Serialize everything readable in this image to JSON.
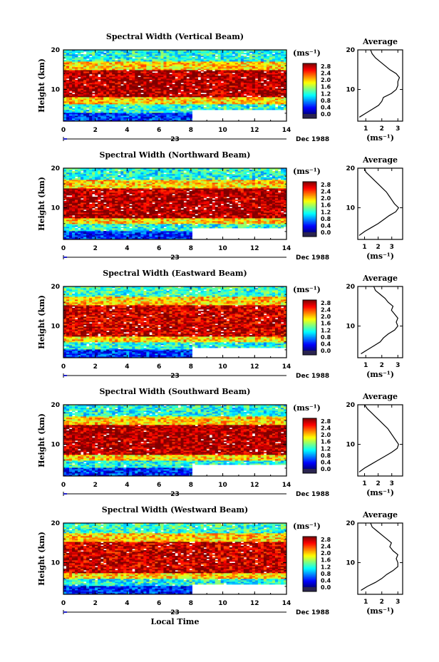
{
  "chart_data": [
    {
      "type": "heatmap",
      "title": "Spectral Width (Vertical Beam)",
      "ylabel": "Height (km)",
      "xticks": [
        "0",
        "2",
        "4",
        "6",
        "8",
        "10",
        "12",
        "14"
      ],
      "yticks": [
        "10",
        "20"
      ],
      "date_day": "23",
      "date_label": "Dec 1988",
      "xlim": [
        0,
        14
      ],
      "ylim": [
        2,
        20
      ],
      "data_gap": {
        "x": [
          8,
          14
        ],
        "y": [
          2,
          5
        ]
      },
      "colorbar": {
        "unit": "(ms⁻¹)",
        "labels": [
          "2.8",
          "2.4",
          "2.0",
          "1.6",
          "1.2",
          "0.8",
          "0.4",
          "0.0"
        ],
        "range": [
          0,
          3
        ]
      },
      "bands": [
        {
          "y": [
            2,
            4
          ],
          "value": 0.5
        },
        {
          "y": [
            4,
            6.5
          ],
          "value": 1.2
        },
        {
          "y": [
            6.5,
            8
          ],
          "value": 2.0
        },
        {
          "y": [
            8,
            15
          ],
          "value": 2.9
        },
        {
          "y": [
            15,
            17
          ],
          "value": 2.0
        },
        {
          "y": [
            17,
            20
          ],
          "value": 1.2
        }
      ],
      "profile": {
        "title": "Average",
        "xlabel": "(ms⁻¹)",
        "xticks": [
          "1",
          "2",
          "3"
        ],
        "yticks": [
          "10",
          "20"
        ],
        "xlim": [
          0.5,
          3.3
        ],
        "height": [
          3,
          4,
          5,
          6,
          7,
          8,
          9,
          10,
          11,
          12,
          13,
          14,
          15,
          16,
          17,
          18,
          19,
          20
        ],
        "width": [
          0.6,
          1.0,
          1.4,
          1.8,
          2.0,
          2.1,
          2.6,
          2.9,
          3.0,
          3.0,
          3.1,
          2.9,
          2.5,
          2.2,
          1.9,
          1.6,
          1.4,
          1.3
        ]
      }
    },
    {
      "type": "heatmap",
      "title": "Spectral Width (Northward Beam)",
      "ylabel": "Height (km)",
      "xticks": [
        "0",
        "2",
        "4",
        "6",
        "8",
        "10",
        "12",
        "14"
      ],
      "yticks": [
        "10",
        "20"
      ],
      "date_day": "23",
      "date_label": "Dec 1988",
      "xlim": [
        0,
        14
      ],
      "ylim": [
        2,
        20
      ],
      "data_gap": {
        "x": [
          8,
          14
        ],
        "y": [
          2,
          5
        ]
      },
      "colorbar": {
        "unit": "(ms⁻¹)",
        "labels": [
          "2.8",
          "2.4",
          "2.0",
          "1.6",
          "1.2",
          "0.8",
          "0.4",
          "0.0"
        ],
        "range": [
          0,
          3
        ]
      },
      "bands": [
        {
          "y": [
            2,
            4
          ],
          "value": 0.5
        },
        {
          "y": [
            4,
            6
          ],
          "value": 1.2
        },
        {
          "y": [
            6,
            7.5
          ],
          "value": 2.0
        },
        {
          "y": [
            7.5,
            15
          ],
          "value": 2.9
        },
        {
          "y": [
            15,
            17
          ],
          "value": 2.0
        },
        {
          "y": [
            17,
            20
          ],
          "value": 1.2
        }
      ],
      "profile": {
        "title": "Average",
        "xlabel": "(ms⁻¹)",
        "xticks": [
          "1",
          "2",
          "3"
        ],
        "yticks": [
          "10",
          "20"
        ],
        "xlim": [
          0.5,
          3.8
        ],
        "height": [
          3,
          4,
          5,
          6,
          7,
          8,
          9,
          10,
          11,
          12,
          13,
          14,
          15,
          16,
          17,
          18,
          19,
          20
        ],
        "width": [
          0.6,
          1.0,
          1.5,
          2.0,
          2.4,
          2.8,
          3.3,
          3.5,
          3.2,
          3.0,
          2.8,
          2.6,
          2.3,
          2.0,
          1.7,
          1.4,
          1.1,
          1.0
        ]
      }
    },
    {
      "type": "heatmap",
      "title": "Spectral Width (Eastward Beam)",
      "ylabel": "Height (km)",
      "xticks": [
        "0",
        "2",
        "4",
        "6",
        "8",
        "10",
        "12",
        "14"
      ],
      "yticks": [
        "10",
        "20"
      ],
      "date_day": "23",
      "date_label": "Dec 1988",
      "xlim": [
        0,
        14
      ],
      "ylim": [
        2,
        20
      ],
      "data_gap": {
        "x": [
          8,
          14
        ],
        "y": [
          2,
          4.5
        ]
      },
      "colorbar": {
        "unit": "(ms⁻¹)",
        "labels": [
          "2.8",
          "2.4",
          "2.0",
          "1.6",
          "1.2",
          "0.8",
          "0.4",
          "0.0"
        ],
        "range": [
          0,
          3
        ]
      },
      "bands": [
        {
          "y": [
            2,
            4
          ],
          "value": 0.5
        },
        {
          "y": [
            4,
            6
          ],
          "value": 1.2
        },
        {
          "y": [
            6,
            7.5
          ],
          "value": 2.0
        },
        {
          "y": [
            7.5,
            15.5
          ],
          "value": 2.8
        },
        {
          "y": [
            15.5,
            17.5
          ],
          "value": 2.0
        },
        {
          "y": [
            17.5,
            20
          ],
          "value": 1.3
        }
      ],
      "profile": {
        "title": "Average",
        "xlabel": "(ms⁻¹)",
        "xticks": [
          "1",
          "2",
          "3"
        ],
        "yticks": [
          "10",
          "20"
        ],
        "xlim": [
          0.5,
          3.3
        ],
        "height": [
          3,
          4,
          5,
          6,
          7,
          8,
          9,
          10,
          11,
          12,
          13,
          14,
          15,
          16,
          17,
          18,
          19,
          20
        ],
        "width": [
          0.7,
          1.1,
          1.5,
          1.9,
          2.1,
          2.4,
          2.8,
          3.0,
          2.9,
          3.0,
          2.8,
          2.6,
          2.7,
          2.4,
          2.2,
          1.9,
          1.6,
          1.5
        ]
      }
    },
    {
      "type": "heatmap",
      "title": "Spectral Width (Southward Beam)",
      "ylabel": "Height (km)",
      "xticks": [
        "0",
        "2",
        "4",
        "6",
        "8",
        "10",
        "12",
        "14"
      ],
      "yticks": [
        "10",
        "20"
      ],
      "date_day": "23",
      "date_label": "Dec 1988",
      "xlim": [
        0,
        14
      ],
      "ylim": [
        2,
        20
      ],
      "data_gap": {
        "x": [
          8,
          14
        ],
        "y": [
          2,
          5
        ]
      },
      "colorbar": {
        "unit": "(ms⁻¹)",
        "labels": [
          "2.8",
          "2.4",
          "2.0",
          "1.6",
          "1.2",
          "0.8",
          "0.4",
          "0.0"
        ],
        "range": [
          0,
          3
        ]
      },
      "bands": [
        {
          "y": [
            2,
            4
          ],
          "value": 0.5
        },
        {
          "y": [
            4,
            6
          ],
          "value": 1.2
        },
        {
          "y": [
            6,
            7.5
          ],
          "value": 2.0
        },
        {
          "y": [
            7.5,
            15
          ],
          "value": 2.9
        },
        {
          "y": [
            15,
            17
          ],
          "value": 2.0
        },
        {
          "y": [
            17,
            20
          ],
          "value": 1.2
        }
      ],
      "profile": {
        "title": "Average",
        "xlabel": "(ms⁻¹)",
        "xticks": [
          "1",
          "2",
          "3"
        ],
        "yticks": [
          "10",
          "20"
        ],
        "xlim": [
          0.5,
          3.8
        ],
        "height": [
          3,
          4,
          5,
          6,
          7,
          8,
          9,
          10,
          11,
          12,
          13,
          14,
          15,
          16,
          17,
          18,
          19,
          20
        ],
        "width": [
          0.6,
          1.0,
          1.5,
          2.0,
          2.5,
          3.0,
          3.4,
          3.5,
          3.3,
          3.1,
          2.9,
          2.7,
          2.4,
          2.1,
          1.8,
          1.5,
          1.2,
          1.0
        ]
      }
    },
    {
      "type": "heatmap",
      "title": "Spectral Width (Westward Beam)",
      "ylabel": "Height (km)",
      "xticks": [
        "0",
        "2",
        "4",
        "6",
        "8",
        "10",
        "12",
        "14"
      ],
      "yticks": [
        "10",
        "20"
      ],
      "date_day": "23",
      "date_label": "Dec 1988",
      "xlabel": "Local Time",
      "xlim": [
        0,
        14
      ],
      "ylim": [
        2,
        20
      ],
      "data_gap": {
        "x": [
          8,
          14
        ],
        "y": [
          2,
          4.5
        ]
      },
      "colorbar": {
        "unit": "(ms⁻¹)",
        "labels": [
          "2.8",
          "2.4",
          "2.0",
          "1.6",
          "1.2",
          "0.8",
          "0.4",
          "0.0"
        ],
        "range": [
          0,
          3
        ]
      },
      "bands": [
        {
          "y": [
            2,
            4
          ],
          "value": 0.5
        },
        {
          "y": [
            4,
            6
          ],
          "value": 1.2
        },
        {
          "y": [
            6,
            7.5
          ],
          "value": 2.0
        },
        {
          "y": [
            7.5,
            15.5
          ],
          "value": 2.8
        },
        {
          "y": [
            15.5,
            17.5
          ],
          "value": 2.0
        },
        {
          "y": [
            17.5,
            20
          ],
          "value": 1.3
        }
      ],
      "profile": {
        "title": "Average",
        "xlabel": "(ms⁻¹)",
        "xticks": [
          "1",
          "2",
          "3"
        ],
        "yticks": [
          "10",
          "20"
        ],
        "xlim": [
          0.5,
          3.3
        ],
        "height": [
          3,
          4,
          5,
          6,
          7,
          8,
          9,
          10,
          11,
          12,
          13,
          14,
          15,
          16,
          17,
          18,
          19,
          20
        ],
        "width": [
          0.7,
          1.1,
          1.6,
          2.0,
          2.3,
          2.7,
          3.0,
          3.0,
          2.9,
          3.0,
          2.7,
          2.5,
          2.6,
          2.3,
          2.0,
          1.7,
          1.4,
          1.3
        ]
      }
    }
  ]
}
